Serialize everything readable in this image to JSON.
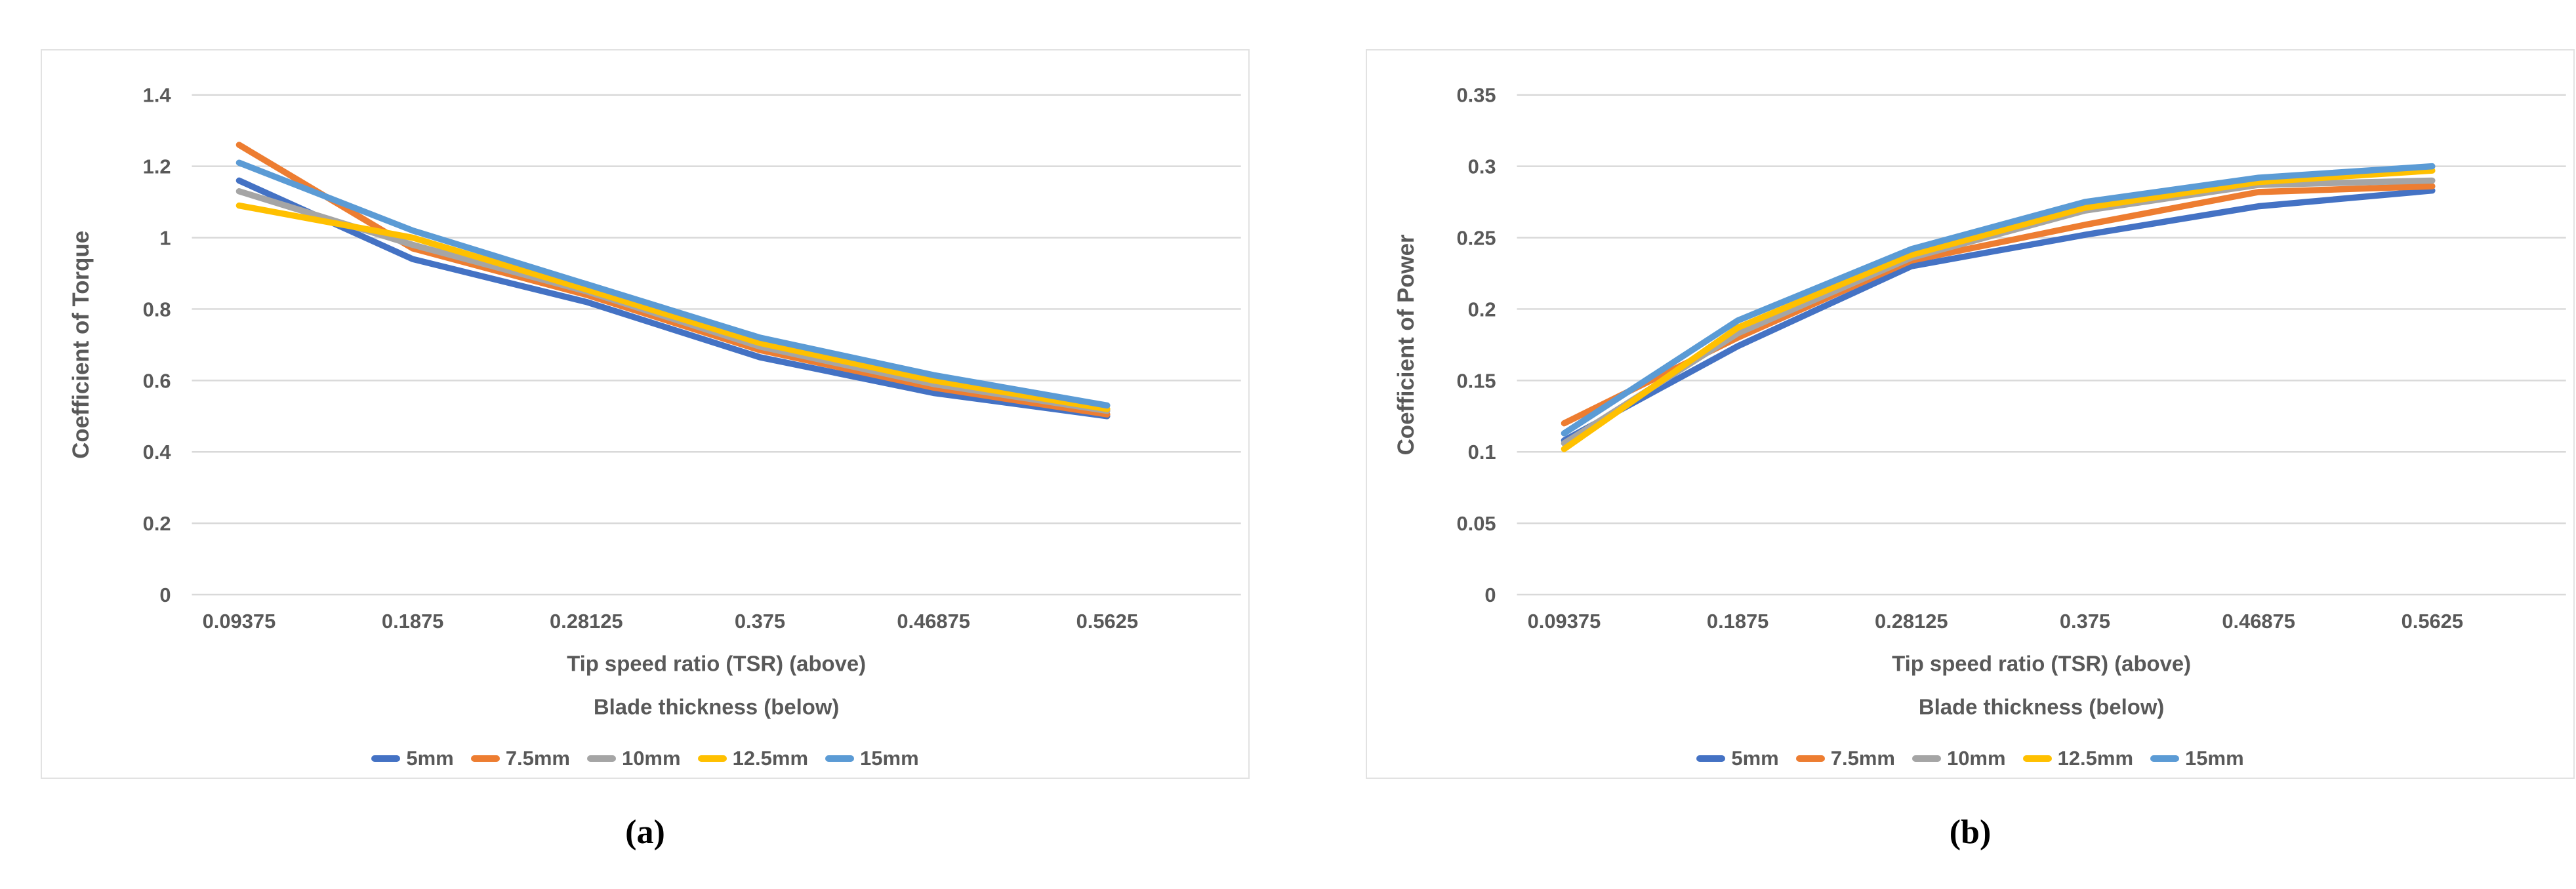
{
  "theme": {
    "text_color": "#595959",
    "grid_color": "#d9d9d9",
    "chart_border_color": "#e2e2e2",
    "background": "#ffffff"
  },
  "chart_data": [
    {
      "type": "line",
      "caption": "(a)",
      "ylabel": "Coefficient of Torque",
      "xlabel_line1": "Tip speed ratio (TSR) (above)",
      "xlabel_line2": "Blade thickness (below)",
      "categories": [
        "0.09375",
        "0.1875",
        "0.28125",
        "0.375",
        "0.46875",
        "0.5625"
      ],
      "ylim": [
        0,
        1.4
      ],
      "ytick_step": 0.2,
      "ytick_labels": [
        "0",
        "0.2",
        "0.4",
        "0.6",
        "0.8",
        "1",
        "1.2",
        "1.4"
      ],
      "grid": true,
      "legend_position": "bottom",
      "series": [
        {
          "name": "5mm",
          "color": "#4472C4",
          "values": [
            1.16,
            0.94,
            0.82,
            0.665,
            0.565,
            0.5
          ]
        },
        {
          "name": "7.5mm",
          "color": "#ED7D31",
          "values": [
            1.26,
            0.97,
            0.84,
            0.685,
            0.58,
            0.505
          ]
        },
        {
          "name": "10mm",
          "color": "#A5A5A5",
          "values": [
            1.13,
            0.98,
            0.85,
            0.695,
            0.59,
            0.515
          ]
        },
        {
          "name": "12.5mm",
          "color": "#FFC000",
          "values": [
            1.09,
            1.0,
            0.855,
            0.705,
            0.6,
            0.52
          ]
        },
        {
          "name": "15mm",
          "color": "#5B9BD5",
          "values": [
            1.21,
            1.02,
            0.87,
            0.72,
            0.615,
            0.53
          ]
        }
      ]
    },
    {
      "type": "line",
      "caption": "(b)",
      "ylabel": "Coefficient of Power",
      "xlabel_line1": "Tip speed ratio (TSR) (above)",
      "xlabel_line2": "Blade thickness (below)",
      "categories": [
        "0.09375",
        "0.1875",
        "0.28125",
        "0.375",
        "0.46875",
        "0.5625"
      ],
      "ylim": [
        0,
        0.35
      ],
      "ytick_step": 0.05,
      "ytick_labels": [
        "0",
        "0.05",
        "0.1",
        "0.15",
        "0.2",
        "0.25",
        "0.3",
        "0.35"
      ],
      "grid": true,
      "legend_position": "bottom",
      "series": [
        {
          "name": "5mm",
          "color": "#4472C4",
          "values": [
            0.108,
            0.174,
            0.23,
            0.252,
            0.272,
            0.283
          ]
        },
        {
          "name": "7.5mm",
          "color": "#ED7D31",
          "values": [
            0.12,
            0.18,
            0.234,
            0.259,
            0.282,
            0.286
          ]
        },
        {
          "name": "10mm",
          "color": "#A5A5A5",
          "values": [
            0.106,
            0.183,
            0.236,
            0.269,
            0.287,
            0.29
          ]
        },
        {
          "name": "12.5mm",
          "color": "#FFC000",
          "values": [
            0.102,
            0.187,
            0.238,
            0.271,
            0.289,
            0.297
          ]
        },
        {
          "name": "15mm",
          "color": "#5B9BD5",
          "values": [
            0.113,
            0.192,
            0.242,
            0.275,
            0.292,
            0.3
          ]
        }
      ]
    }
  ]
}
